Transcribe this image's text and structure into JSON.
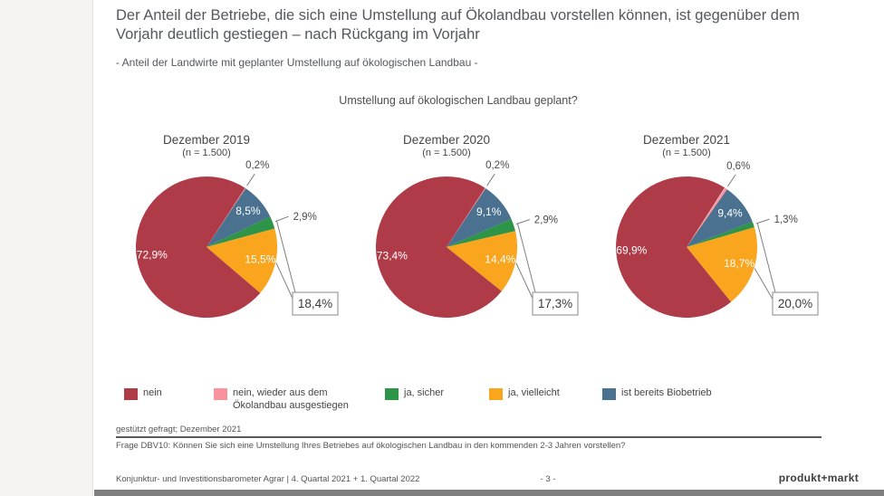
{
  "slide": {
    "title": "Der Anteil der Betriebe, die sich eine Umstellung auf Ökolandbau vorstellen können, ist gegenüber dem Vorjahr deutlich gestiegen – nach Rückgang im Vorjahr",
    "subtitle": "- Anteil der Landwirte mit geplanter Umstellung auf ökologischen Landbau -"
  },
  "chart_data": {
    "type": "pie",
    "question": "Umstellung auf ökologischen Landbau geplant?",
    "start_angle_deg": 33,
    "categories": [
      {
        "key": "nein",
        "label": "nein",
        "color": "#B03B48"
      },
      {
        "key": "nein_wieder_ausgestiegen",
        "label": "nein, wieder aus dem Ökolandbau ausgestiegen",
        "color": "#F8939E"
      },
      {
        "key": "ja_sicher",
        "label": "ja, sicher",
        "color": "#2E9448"
      },
      {
        "key": "ja_vielleicht",
        "label": "ja, vielleicht",
        "color": "#F9A51E"
      },
      {
        "key": "ist_bereits_biobetrieb",
        "label": "ist bereits Biobetrieb",
        "color": "#4A7190"
      }
    ],
    "pies": [
      {
        "title": "Dezember 2019",
        "n": "(n = 1.500)",
        "slices": [
          {
            "key": "nein_wieder_ausgestiegen",
            "value": 0.2,
            "label": "0,2%"
          },
          {
            "key": "ist_bereits_biobetrieb",
            "value": 8.5,
            "label": "8,5%"
          },
          {
            "key": "ja_sicher",
            "value": 2.9,
            "label": "2,9%"
          },
          {
            "key": "ja_vielleicht",
            "value": 15.5,
            "label": "15,5%"
          },
          {
            "key": "nein",
            "value": 72.9,
            "label": "72,9%"
          }
        ],
        "ja_total_value": 18.4,
        "ja_total_label": "18,4%"
      },
      {
        "title": "Dezember 2020",
        "n": "(n = 1.500)",
        "slices": [
          {
            "key": "nein_wieder_ausgestiegen",
            "value": 0.2,
            "label": "0,2%"
          },
          {
            "key": "ist_bereits_biobetrieb",
            "value": 9.1,
            "label": "9,1%"
          },
          {
            "key": "ja_sicher",
            "value": 2.9,
            "label": "2,9%"
          },
          {
            "key": "ja_vielleicht",
            "value": 14.4,
            "label": "14,4%"
          },
          {
            "key": "nein",
            "value": 73.4,
            "label": "73,4%"
          }
        ],
        "ja_total_value": 17.3,
        "ja_total_label": "17,3%"
      },
      {
        "title": "Dezember 2021",
        "n": "(n = 1.500)",
        "slices": [
          {
            "key": "nein_wieder_ausgestiegen",
            "value": 0.6,
            "label": "0,6%"
          },
          {
            "key": "ist_bereits_biobetrieb",
            "value": 9.4,
            "label": "9,4%"
          },
          {
            "key": "ja_sicher",
            "value": 1.3,
            "label": "1,3%"
          },
          {
            "key": "ja_vielleicht",
            "value": 18.7,
            "label": "18,7%"
          },
          {
            "key": "nein",
            "value": 69.9,
            "label": "69,9%"
          }
        ],
        "ja_total_value": 20.0,
        "ja_total_label": "20,0%"
      }
    ]
  },
  "footer": {
    "note1": "gestützt gefragt; Dezember 2021",
    "question_source": "Frage DBV10: Können Sie sich eine Umstellung Ihres Betriebes auf ökologischen Landbau in den kommenden 2-3 Jahren vorstellen?",
    "report": "Konjunktur- und Investitionsbarometer Agrar | 4. Quartal 2021 + 1. Quartal 2022",
    "page_number": "- 3 -",
    "brand": "produkt+markt"
  },
  "colors": {
    "title_text": "#54575C",
    "leader_line": "#7F7F7F",
    "box_border": "#9B9B9B",
    "bottom_bar": "#7F7F7F"
  }
}
